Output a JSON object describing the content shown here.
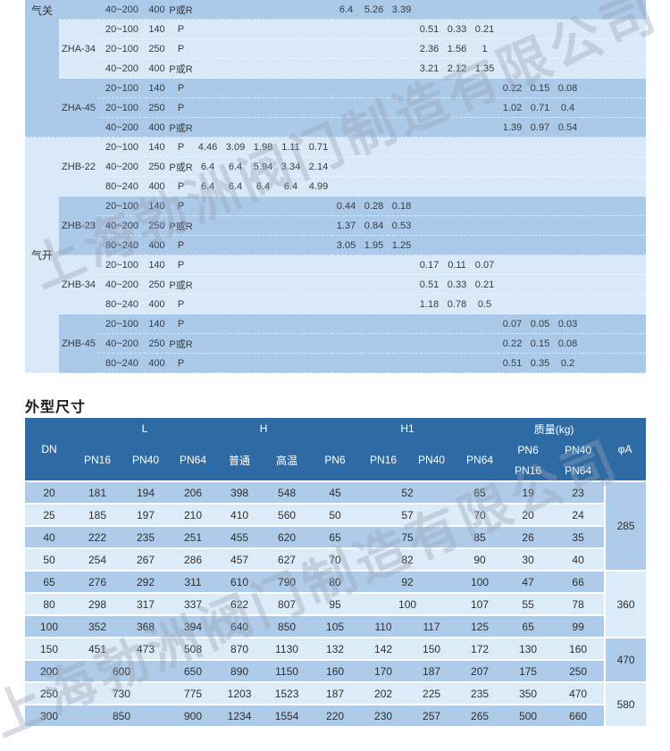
{
  "watermark": {
    "text": "上海勃洲阀门制造有限公司"
  },
  "colors": {
    "table_header_blue": "#2e6ba4",
    "row_medium_blue": "#abc9e8",
    "row_light_blue": "#d9e9f7",
    "dim_row_medium": "#aecbe9",
    "dim_row_light": "#dcebf8",
    "header_text": "#ffffff",
    "body_text": "#3a3a3a"
  },
  "kv_table": {
    "action_groups": [
      {
        "label": "气关",
        "rows_span": 7,
        "shade": "medium"
      },
      {
        "label": "气开",
        "rows_span": 12,
        "shade": "light"
      }
    ],
    "blocks": [
      {
        "model": "",
        "action": 0,
        "shade": "medium",
        "rows": [
          {
            "range": "40~200",
            "pressure": "400",
            "flow": "P或R",
            "start": 6,
            "values": [
              "6.4",
              "5.26",
              "3.39"
            ]
          }
        ]
      },
      {
        "model": "ZHA-34",
        "action": 0,
        "shade": "light",
        "rows": [
          {
            "range": "20~100",
            "pressure": "140",
            "flow": "P",
            "start": 9,
            "values": [
              "0.51",
              "0.33",
              "0.21"
            ]
          },
          {
            "range": "20~100",
            "pressure": "250",
            "flow": "P",
            "start": 9,
            "values": [
              "2.36",
              "1.56",
              "1"
            ]
          },
          {
            "range": "40~200",
            "pressure": "400",
            "flow": "P或R",
            "start": 9,
            "values": [
              "3.21",
              "2.12",
              "1.35"
            ]
          }
        ]
      },
      {
        "model": "ZHA-45",
        "action": 0,
        "shade": "medium",
        "rows": [
          {
            "range": "20~100",
            "pressure": "140",
            "flow": "P",
            "start": 12,
            "values": [
              "0.22",
              "0.15",
              "0.08"
            ]
          },
          {
            "range": "20~100",
            "pressure": "250",
            "flow": "P",
            "start": 12,
            "values": [
              "1.02",
              "0.71",
              "0.4"
            ]
          },
          {
            "range": "40~200",
            "pressure": "400",
            "flow": "P或R",
            "start": 12,
            "values": [
              "1.39",
              "0.97",
              "0.54"
            ]
          }
        ]
      },
      {
        "model": "ZHB-22",
        "action": 1,
        "shade": "light",
        "rows": [
          {
            "range": "20~100",
            "pressure": "140",
            "flow": "P",
            "start": 1,
            "values": [
              "4.46",
              "3.09",
              "1.98",
              "1.11",
              "0.71"
            ]
          },
          {
            "range": "40~200",
            "pressure": "250",
            "flow": "P或R",
            "start": 1,
            "values": [
              "6.4",
              "6.4",
              "5.94",
              "3.34",
              "2.14"
            ]
          },
          {
            "range": "80~240",
            "pressure": "400",
            "flow": "P",
            "start": 1,
            "values": [
              "6.4",
              "6.4",
              "6.4",
              "6.4",
              "4.99"
            ]
          }
        ]
      },
      {
        "model": "ZHB-23",
        "action": 1,
        "shade": "medium",
        "rows": [
          {
            "range": "20~100",
            "pressure": "140",
            "flow": "P",
            "start": 6,
            "values": [
              "0.44",
              "0.28",
              "0.18"
            ]
          },
          {
            "range": "40~200",
            "pressure": "250",
            "flow": "P或R",
            "start": 6,
            "values": [
              "1.37",
              "0.84",
              "0.53"
            ]
          },
          {
            "range": "80~240",
            "pressure": "400",
            "flow": "P",
            "start": 6,
            "values": [
              "3.05",
              "1.95",
              "1.25"
            ]
          }
        ]
      },
      {
        "model": "ZHB-34",
        "action": 1,
        "shade": "light",
        "rows": [
          {
            "range": "20~100",
            "pressure": "140",
            "flow": "P",
            "start": 9,
            "values": [
              "0.17",
              "0.11",
              "0.07"
            ]
          },
          {
            "range": "40~200",
            "pressure": "250",
            "flow": "P或R",
            "start": 9,
            "values": [
              "0.51",
              "0.33",
              "0.21"
            ]
          },
          {
            "range": "80~240",
            "pressure": "400",
            "flow": "P",
            "start": 9,
            "values": [
              "1.18",
              "0.78",
              "0.5"
            ]
          }
        ]
      },
      {
        "model": "ZHB-45",
        "action": 1,
        "shade": "medium",
        "rows": [
          {
            "range": "20~100",
            "pressure": "140",
            "flow": "P",
            "start": 12,
            "values": [
              "0.07",
              "0.05",
              "0.03"
            ]
          },
          {
            "range": "40~200",
            "pressure": "250",
            "flow": "P或R",
            "start": 12,
            "values": [
              "0.22",
              "0.15",
              "0.08"
            ]
          },
          {
            "range": "80~240",
            "pressure": "400",
            "flow": "P",
            "start": 12,
            "values": [
              "0.51",
              "0.35",
              "0.2"
            ]
          }
        ]
      }
    ]
  },
  "dim_table": {
    "title": "外型尺寸",
    "header": {
      "dn": "DN",
      "phiA": "φA",
      "groups": [
        {
          "label": "L",
          "subs": [
            "PN16",
            "PN40",
            "PN64"
          ]
        },
        {
          "label": "H",
          "subs": [
            "普通",
            "高温"
          ]
        },
        {
          "label": "H1",
          "subs": [
            "PN6",
            "PN16",
            "PN40",
            "PN64"
          ]
        },
        {
          "label": "质量(kg)",
          "subs_top": [
            "PN6",
            "PN40"
          ],
          "subs_bottom": [
            "PN16",
            "PN64"
          ]
        }
      ]
    },
    "rows": [
      {
        "shade": "medium",
        "phiA": {
          "t": "285",
          "rs": 4,
          "shade": "medium"
        },
        "cells": [
          {
            "t": "20"
          },
          {
            "t": "181"
          },
          {
            "t": "194"
          },
          {
            "t": "206"
          },
          {
            "t": "398"
          },
          {
            "t": "548"
          },
          {
            "t": "45"
          },
          {
            "t": "52",
            "cs": 2
          },
          {
            "t": "65"
          },
          {
            "t": "19"
          },
          {
            "t": "23"
          }
        ]
      },
      {
        "shade": "light",
        "cells": [
          {
            "t": "25"
          },
          {
            "t": "185"
          },
          {
            "t": "197"
          },
          {
            "t": "210"
          },
          {
            "t": "410"
          },
          {
            "t": "560"
          },
          {
            "t": "50"
          },
          {
            "t": "57",
            "cs": 2
          },
          {
            "t": "70"
          },
          {
            "t": "20"
          },
          {
            "t": "24"
          }
        ]
      },
      {
        "shade": "medium",
        "cells": [
          {
            "t": "40"
          },
          {
            "t": "222"
          },
          {
            "t": "235"
          },
          {
            "t": "251"
          },
          {
            "t": "455"
          },
          {
            "t": "620"
          },
          {
            "t": "65"
          },
          {
            "t": "75",
            "cs": 2
          },
          {
            "t": "85"
          },
          {
            "t": "26"
          },
          {
            "t": "35"
          }
        ]
      },
      {
        "shade": "light",
        "cells": [
          {
            "t": "50"
          },
          {
            "t": "254"
          },
          {
            "t": "267"
          },
          {
            "t": "286"
          },
          {
            "t": "457"
          },
          {
            "t": "627"
          },
          {
            "t": "70"
          },
          {
            "t": "82",
            "cs": 2
          },
          {
            "t": "90"
          },
          {
            "t": "30"
          },
          {
            "t": "40"
          }
        ]
      },
      {
        "shade": "medium",
        "phiA": {
          "t": "360",
          "rs": 3,
          "shade": "light"
        },
        "cells": [
          {
            "t": "65"
          },
          {
            "t": "276"
          },
          {
            "t": "292"
          },
          {
            "t": "311"
          },
          {
            "t": "610"
          },
          {
            "t": "790"
          },
          {
            "t": "80"
          },
          {
            "t": "92",
            "cs": 2
          },
          {
            "t": "100"
          },
          {
            "t": "47"
          },
          {
            "t": "66"
          }
        ]
      },
      {
        "shade": "light",
        "cells": [
          {
            "t": "80"
          },
          {
            "t": "298"
          },
          {
            "t": "317"
          },
          {
            "t": "337"
          },
          {
            "t": "622"
          },
          {
            "t": "807"
          },
          {
            "t": "95"
          },
          {
            "t": "100",
            "cs": 2
          },
          {
            "t": "107"
          },
          {
            "t": "55"
          },
          {
            "t": "78"
          }
        ]
      },
      {
        "shade": "medium",
        "cells": [
          {
            "t": "100"
          },
          {
            "t": "352"
          },
          {
            "t": "368"
          },
          {
            "t": "394"
          },
          {
            "t": "640"
          },
          {
            "t": "850"
          },
          {
            "t": "105"
          },
          {
            "t": "110"
          },
          {
            "t": "117"
          },
          {
            "t": "125"
          },
          {
            "t": "65"
          },
          {
            "t": "99"
          }
        ]
      },
      {
        "shade": "light",
        "phiA": {
          "t": "470",
          "rs": 2,
          "shade": "medium"
        },
        "cells": [
          {
            "t": "150"
          },
          {
            "t": "451"
          },
          {
            "t": "473"
          },
          {
            "t": "508"
          },
          {
            "t": "870"
          },
          {
            "t": "1130"
          },
          {
            "t": "132"
          },
          {
            "t": "142"
          },
          {
            "t": "150"
          },
          {
            "t": "172"
          },
          {
            "t": "130"
          },
          {
            "t": "160"
          }
        ]
      },
      {
        "shade": "medium",
        "cells": [
          {
            "t": "200"
          },
          {
            "t": "600",
            "cs": 2
          },
          {
            "t": "650"
          },
          {
            "t": "890"
          },
          {
            "t": "1150"
          },
          {
            "t": "160"
          },
          {
            "t": "170"
          },
          {
            "t": "187"
          },
          {
            "t": "207"
          },
          {
            "t": "175"
          },
          {
            "t": "250"
          }
        ]
      },
      {
        "shade": "light",
        "phiA": {
          "t": "580",
          "rs": 2,
          "shade": "light"
        },
        "cells": [
          {
            "t": "250"
          },
          {
            "t": "730",
            "cs": 2
          },
          {
            "t": "775"
          },
          {
            "t": "1203"
          },
          {
            "t": "1523"
          },
          {
            "t": "187"
          },
          {
            "t": "202"
          },
          {
            "t": "225"
          },
          {
            "t": "235"
          },
          {
            "t": "350"
          },
          {
            "t": "470"
          }
        ]
      },
      {
        "shade": "medium",
        "cells": [
          {
            "t": "300"
          },
          {
            "t": "850",
            "cs": 2
          },
          {
            "t": "900"
          },
          {
            "t": "1234"
          },
          {
            "t": "1554"
          },
          {
            "t": "220"
          },
          {
            "t": "230"
          },
          {
            "t": "257"
          },
          {
            "t": "265"
          },
          {
            "t": "500"
          },
          {
            "t": "660"
          }
        ]
      }
    ]
  }
}
